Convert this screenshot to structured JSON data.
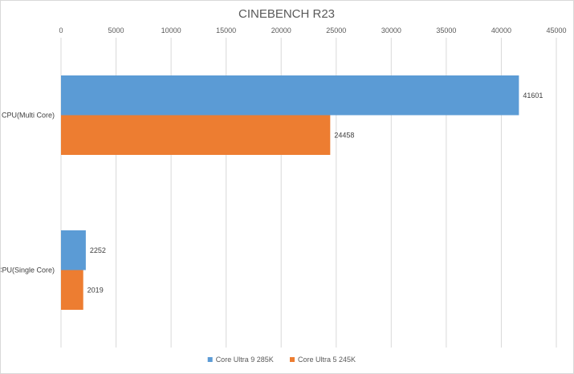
{
  "chart_data": {
    "type": "bar",
    "orientation": "horizontal",
    "title": "CINEBENCH R23",
    "xlabel": "",
    "ylabel": "",
    "categories": [
      "CPU(Multi Core)",
      "CPU(Single Core)"
    ],
    "series": [
      {
        "name": "Core Ultra 9 285K",
        "color": "#5b9bd5",
        "values": [
          41601,
          2252
        ]
      },
      {
        "name": "Core Ultra 5 245K",
        "color": "#ed7d31",
        "values": [
          24458,
          2019
        ]
      }
    ],
    "xlim": [
      0,
      45000
    ],
    "x_ticks": [
      "0",
      "5000",
      "10000",
      "15000",
      "20000",
      "25000",
      "30000",
      "35000",
      "40000",
      "45000"
    ],
    "axis_position": "top",
    "grid": true,
    "legend_position": "bottom",
    "data_labels": true
  }
}
